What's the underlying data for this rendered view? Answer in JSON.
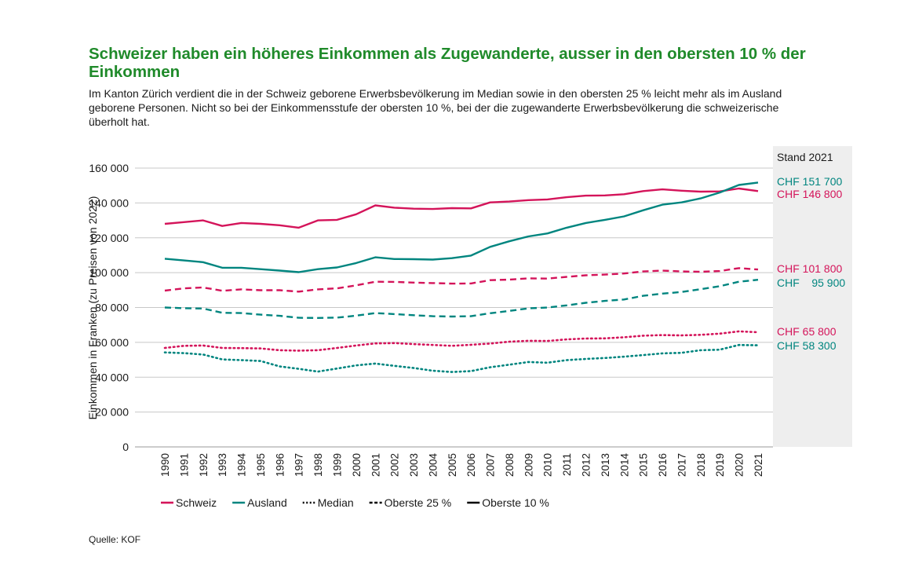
{
  "title": "Schweizer haben ein höheres Einkommen als Zugewanderte, ausser in den obersten 10 % der Einkommen",
  "subtitle": "Im Kanton Zürich verdient die in der Schweiz geborene Erwerbsbevölkerung im Median sowie in den obersten 25 % leicht mehr als im Ausland geborene Personen. Nicht so bei der Einkommensstufe der obersten 10 %, bei der die zugewanderte Erwerbsbevölkerung die schweizerische überholt hat.",
  "source": "Quelle: KOF",
  "colors": {
    "schweiz": "#d4145a",
    "ausland": "#00857f",
    "title": "#1f8a2a",
    "panel": "#eeeeee"
  },
  "chart_data": {
    "type": "line",
    "ylabel": "Einkommen in Franken (zu Preisen von 2022)",
    "ylim": [
      0,
      160000
    ],
    "yticks": [
      0,
      20000,
      40000,
      60000,
      80000,
      100000,
      120000,
      140000,
      160000
    ],
    "ytick_labels": [
      "0",
      "20 000",
      "40 000",
      "60 000",
      "80 000",
      "100 000",
      "120 000",
      "140 000",
      "160 000"
    ],
    "grid": true,
    "x": [
      "1990",
      "1991",
      "1992",
      "1993",
      "1994",
      "1995",
      "1996",
      "1997",
      "1998",
      "1999",
      "2000",
      "2001",
      "2002",
      "2003",
      "2004",
      "2005",
      "2006",
      "2007",
      "2008",
      "2009",
      "2010",
      "2011",
      "2012",
      "2013",
      "2014",
      "2015",
      "2016",
      "2017",
      "2018",
      "2019",
      "2020",
      "2021"
    ],
    "panel_title": "Stand 2021",
    "series": [
      {
        "group": "Schweiz",
        "level": "Oberste 10 %",
        "color": "#d4145a",
        "dash": "solid",
        "end_label": "CHF 146 800",
        "values": [
          128000,
          129000,
          130000,
          126800,
          128500,
          128000,
          127200,
          125800,
          130000,
          130300,
          133500,
          138600,
          137300,
          136700,
          136500,
          137000,
          136900,
          140300,
          140800,
          141600,
          142000,
          143300,
          144200,
          144300,
          145000,
          146800,
          147800,
          147000,
          146500,
          146600,
          148300,
          146800
        ]
      },
      {
        "group": "Ausland",
        "level": "Oberste 10 %",
        "color": "#00857f",
        "dash": "solid",
        "end_label": "CHF 151 700",
        "values": [
          108000,
          107000,
          106000,
          102800,
          102800,
          102000,
          101200,
          100300,
          102000,
          103000,
          105500,
          108800,
          107800,
          107700,
          107500,
          108300,
          109800,
          114800,
          118000,
          120800,
          122500,
          125800,
          128500,
          130300,
          132300,
          135800,
          139000,
          140300,
          142600,
          146000,
          150300,
          151700
        ]
      },
      {
        "group": "Schweiz",
        "level": "Oberste 25 %",
        "color": "#d4145a",
        "dash": "dashed",
        "end_label": "CHF 101 800",
        "values": [
          89700,
          91000,
          91500,
          89600,
          90400,
          89900,
          89900,
          89100,
          90400,
          91000,
          92700,
          94800,
          94700,
          94300,
          94000,
          93700,
          93800,
          95700,
          96000,
          96700,
          96600,
          97600,
          98500,
          98900,
          99500,
          100700,
          101200,
          100700,
          100500,
          100900,
          102600,
          101800
        ]
      },
      {
        "group": "Ausland",
        "level": "Oberste 25 %",
        "color": "#00857f",
        "dash": "dashed",
        "end_label": "CHF    95 900",
        "values": [
          80000,
          79600,
          79400,
          77000,
          76800,
          75900,
          75200,
          74100,
          74000,
          74200,
          75300,
          76800,
          76200,
          75600,
          75000,
          74800,
          75000,
          76700,
          78000,
          79500,
          80000,
          81200,
          82700,
          83800,
          84600,
          86700,
          88000,
          88900,
          90500,
          92200,
          94800,
          95900
        ]
      },
      {
        "group": "Schweiz",
        "level": "Median",
        "color": "#d4145a",
        "dash": "dotted",
        "end_label": "CHF 65 800",
        "values": [
          56800,
          58000,
          58200,
          56800,
          56700,
          56500,
          55500,
          55200,
          55500,
          56800,
          58200,
          59400,
          59600,
          59000,
          58500,
          58000,
          58600,
          59300,
          60400,
          60900,
          60800,
          61700,
          62200,
          62300,
          62900,
          63800,
          64200,
          64000,
          64300,
          65000,
          66300,
          65800
        ]
      },
      {
        "group": "Ausland",
        "level": "Median",
        "color": "#00857f",
        "dash": "dotted",
        "end_label": "CHF 58 300",
        "values": [
          54200,
          53800,
          53000,
          50200,
          49800,
          49300,
          46200,
          44800,
          43200,
          45000,
          46800,
          47800,
          46500,
          45300,
          43700,
          43000,
          43500,
          45700,
          47200,
          48700,
          48300,
          49800,
          50500,
          51000,
          51800,
          52700,
          53700,
          54000,
          55500,
          55800,
          58500,
          58300
        ]
      }
    ],
    "legend": [
      {
        "label": "Schweiz",
        "color": "#d4145a",
        "dash": "solid"
      },
      {
        "label": "Ausland",
        "color": "#00857f",
        "dash": "solid"
      },
      {
        "label": "Median",
        "color": "#000000",
        "dash": "dotted"
      },
      {
        "label": "Oberste 25 %",
        "color": "#000000",
        "dash": "dashed"
      },
      {
        "label": "Oberste 10 %",
        "color": "#000000",
        "dash": "solid"
      }
    ],
    "legend_position": "bottom"
  }
}
